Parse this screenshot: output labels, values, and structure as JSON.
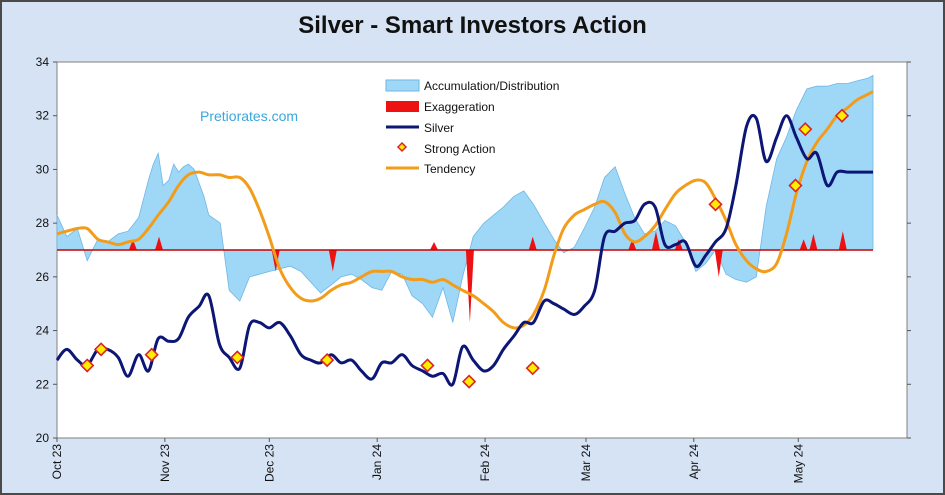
{
  "chart_data": {
    "type": "line",
    "title": "Silver - Smart Investors Action",
    "watermark": "Pretiorates.com",
    "ylim": [
      20,
      34
    ],
    "yticks": [
      20,
      22,
      24,
      26,
      28,
      30,
      32,
      34
    ],
    "xlim": [
      0,
      1
    ],
    "xticks": [
      {
        "label": "Oct 23",
        "pos": 0.0
      },
      {
        "label": "Nov 23",
        "pos": 0.1322
      },
      {
        "label": "Dec 23",
        "pos": 0.2602
      },
      {
        "label": "Jan 24",
        "pos": 0.3924
      },
      {
        "label": "Feb 24",
        "pos": 0.5246
      },
      {
        "label": "Mar 24",
        "pos": 0.6483
      },
      {
        "label": "Apr 24",
        "pos": 0.7804
      },
      {
        "label": "May 24",
        "pos": 0.9084
      }
    ],
    "baseline": 27,
    "legend": {
      "position": "top-center",
      "entries": [
        "Accumulation/Distribution",
        "Exaggeration",
        "Silver",
        "Strong Action",
        "Tendency"
      ]
    },
    "colors": {
      "accumulation": "#9fd8f6",
      "accumulation_edge": "#6fb6e6",
      "exaggeration": "#ee1111",
      "silver": "#0b1675",
      "strong_fill": "#ffee00",
      "strong_edge": "#dd2222",
      "tendency": "#f39c1a",
      "baseline": "#cc0000"
    },
    "series": [
      {
        "name": "Accumulation/Distribution",
        "x": [
          0.0,
          0.012,
          0.025,
          0.037,
          0.05,
          0.062,
          0.075,
          0.087,
          0.1,
          0.112,
          0.118,
          0.124,
          0.13,
          0.137,
          0.143,
          0.149,
          0.155,
          0.161,
          0.168,
          0.174,
          0.18,
          0.186,
          0.2,
          0.211,
          0.224,
          0.236,
          0.248,
          0.26,
          0.273,
          0.286,
          0.299,
          0.311,
          0.323,
          0.336,
          0.348,
          0.361,
          0.373,
          0.386,
          0.398,
          0.41,
          0.423,
          0.435,
          0.448,
          0.46,
          0.473,
          0.485,
          0.497,
          0.51,
          0.523,
          0.535,
          0.547,
          0.56,
          0.572,
          0.584,
          0.597,
          0.609,
          0.621,
          0.634,
          0.646,
          0.659,
          0.671,
          0.684,
          0.696,
          0.708,
          0.72,
          0.733,
          0.745,
          0.758,
          0.77,
          0.783,
          0.795,
          0.807,
          0.82,
          0.832,
          0.845,
          0.857,
          0.869,
          0.882,
          0.894,
          0.906,
          0.919,
          0.931,
          0.944,
          0.956,
          0.969,
          0.981,
          0.994,
          1.0
        ],
        "y": [
          28.3,
          27.5,
          27.8,
          26.6,
          27.4,
          27.3,
          27.6,
          27.7,
          28.2,
          29.6,
          30.2,
          30.6,
          29.4,
          29.6,
          30.2,
          29.9,
          30.1,
          30.2,
          30.0,
          29.5,
          29.0,
          28.3,
          28.0,
          25.5,
          25.1,
          26.0,
          26.1,
          26.2,
          26.3,
          26.4,
          26.2,
          25.8,
          25.4,
          25.7,
          26.0,
          26.1,
          25.9,
          25.6,
          25.5,
          26.2,
          26.1,
          25.3,
          25.0,
          24.5,
          25.6,
          24.3,
          26.0,
          27.5,
          28.0,
          28.3,
          28.6,
          29.0,
          29.2,
          28.7,
          28.0,
          27.4,
          26.9,
          27.1,
          27.8,
          28.6,
          29.7,
          30.1,
          29.1,
          28.2,
          27.6,
          27.7,
          28.1,
          27.9,
          27.3,
          26.2,
          26.5,
          27.0,
          26.1,
          25.9,
          25.8,
          26.0,
          28.6,
          30.4,
          31.2,
          32.2,
          33.0,
          33.1,
          33.1,
          33.2,
          33.2,
          33.3,
          33.4,
          33.5
        ]
      },
      {
        "name": "Exaggeration",
        "x": [
          0.093,
          0.125,
          0.268,
          0.338,
          0.462,
          0.506,
          0.583,
          0.705,
          0.734,
          0.762,
          0.811,
          0.915,
          0.927,
          0.963
        ],
        "y": [
          27.4,
          27.5,
          26.2,
          26.2,
          27.3,
          24.3,
          27.5,
          27.4,
          27.7,
          27.4,
          26.0,
          27.4,
          27.6,
          27.7
        ]
      },
      {
        "name": "Silver",
        "x": [
          0.0,
          0.012,
          0.025,
          0.037,
          0.05,
          0.062,
          0.075,
          0.087,
          0.1,
          0.112,
          0.124,
          0.137,
          0.149,
          0.161,
          0.174,
          0.186,
          0.199,
          0.211,
          0.224,
          0.236,
          0.248,
          0.26,
          0.273,
          0.286,
          0.299,
          0.311,
          0.323,
          0.336,
          0.348,
          0.361,
          0.373,
          0.386,
          0.398,
          0.41,
          0.423,
          0.435,
          0.448,
          0.46,
          0.473,
          0.485,
          0.497,
          0.51,
          0.523,
          0.535,
          0.547,
          0.56,
          0.572,
          0.584,
          0.597,
          0.609,
          0.621,
          0.634,
          0.646,
          0.659,
          0.671,
          0.684,
          0.696,
          0.708,
          0.72,
          0.733,
          0.745,
          0.758,
          0.77,
          0.783,
          0.795,
          0.807,
          0.82,
          0.832,
          0.845,
          0.857,
          0.869,
          0.882,
          0.894,
          0.906,
          0.919,
          0.931,
          0.944,
          0.956,
          0.969,
          0.981,
          0.994,
          1.0
        ],
        "y": [
          22.9,
          23.3,
          22.9,
          22.7,
          23.3,
          23.3,
          23.0,
          22.3,
          23.1,
          22.5,
          23.7,
          23.6,
          23.7,
          24.5,
          24.9,
          25.3,
          23.5,
          23.0,
          22.6,
          24.2,
          24.3,
          24.1,
          24.3,
          23.8,
          23.1,
          22.9,
          22.8,
          23.1,
          22.8,
          22.9,
          22.5,
          22.2,
          22.8,
          22.8,
          23.1,
          22.7,
          22.5,
          22.3,
          22.4,
          22.0,
          23.4,
          22.9,
          22.5,
          22.7,
          23.3,
          23.8,
          24.3,
          24.3,
          25.1,
          25.0,
          24.8,
          24.6,
          24.9,
          25.5,
          27.5,
          27.7,
          28.0,
          28.1,
          28.7,
          28.6,
          27.2,
          27.2,
          27.3,
          26.4,
          26.8,
          27.3,
          27.8,
          29.4,
          31.6,
          31.9,
          30.3,
          31.2,
          32.0,
          31.2,
          30.4,
          30.6,
          29.4,
          29.9,
          29.9,
          29.9,
          29.9,
          29.9
        ]
      },
      {
        "name": "Strong Action",
        "x": [
          0.037,
          0.054,
          0.116,
          0.221,
          0.331,
          0.454,
          0.505,
          0.583,
          0.807,
          0.905,
          0.917,
          0.962
        ],
        "y": [
          22.7,
          23.3,
          23.1,
          23.0,
          22.9,
          22.7,
          22.1,
          22.6,
          28.7,
          29.4,
          31.5,
          32.0
        ]
      },
      {
        "name": "Tendency",
        "x": [
          0.0,
          0.012,
          0.025,
          0.037,
          0.05,
          0.062,
          0.075,
          0.087,
          0.1,
          0.112,
          0.124,
          0.137,
          0.149,
          0.161,
          0.174,
          0.186,
          0.199,
          0.211,
          0.224,
          0.236,
          0.248,
          0.26,
          0.273,
          0.286,
          0.299,
          0.311,
          0.323,
          0.336,
          0.348,
          0.361,
          0.373,
          0.386,
          0.398,
          0.41,
          0.423,
          0.435,
          0.448,
          0.46,
          0.473,
          0.485,
          0.497,
          0.51,
          0.523,
          0.535,
          0.547,
          0.56,
          0.572,
          0.584,
          0.597,
          0.609,
          0.621,
          0.634,
          0.646,
          0.659,
          0.671,
          0.684,
          0.696,
          0.708,
          0.72,
          0.733,
          0.745,
          0.758,
          0.77,
          0.783,
          0.795,
          0.807,
          0.82,
          0.832,
          0.845,
          0.857,
          0.869,
          0.882,
          0.894,
          0.906,
          0.919,
          0.931,
          0.944,
          0.956,
          0.969,
          0.981,
          0.994,
          1.0
        ],
        "y": [
          27.6,
          27.7,
          27.8,
          27.8,
          27.4,
          27.3,
          27.2,
          27.3,
          27.4,
          27.8,
          28.3,
          28.8,
          29.4,
          29.8,
          29.9,
          29.8,
          29.8,
          29.7,
          29.7,
          29.3,
          28.5,
          27.5,
          26.3,
          25.6,
          25.2,
          25.1,
          25.2,
          25.5,
          25.7,
          25.8,
          26.0,
          26.2,
          26.2,
          26.2,
          26.0,
          25.9,
          25.9,
          25.8,
          25.9,
          25.7,
          25.5,
          25.3,
          25.0,
          24.7,
          24.3,
          24.1,
          24.2,
          24.6,
          25.5,
          26.8,
          27.8,
          28.3,
          28.5,
          28.7,
          28.8,
          28.4,
          27.6,
          27.3,
          27.5,
          27.9,
          28.5,
          29.1,
          29.4,
          29.6,
          29.5,
          28.9,
          28.1,
          27.2,
          26.6,
          26.3,
          26.2,
          26.5,
          27.6,
          29.1,
          30.3,
          31.0,
          31.5,
          32.0,
          32.3,
          32.6,
          32.8,
          32.9
        ]
      }
    ]
  }
}
